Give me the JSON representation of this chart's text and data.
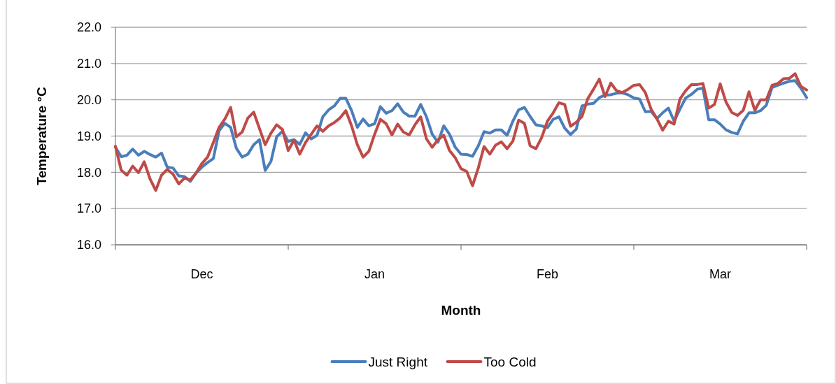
{
  "chart_data": {
    "type": "line",
    "xlabel": "Month",
    "ylabel": "Temperature °C",
    "categories": [
      null,
      null,
      null,
      null,
      null,
      null,
      null,
      null,
      null,
      null,
      null,
      null,
      null,
      null,
      null,
      "Dec",
      null,
      null,
      null,
      null,
      null,
      null,
      null,
      null,
      null,
      null,
      null,
      null,
      null,
      null,
      null,
      null,
      null,
      null,
      null,
      null,
      null,
      null,
      null,
      null,
      null,
      null,
      null,
      null,
      null,
      "Jan",
      null,
      null,
      null,
      null,
      null,
      null,
      null,
      null,
      null,
      null,
      null,
      null,
      null,
      null,
      null,
      null,
      null,
      null,
      null,
      null,
      null,
      null,
      null,
      null,
      null,
      null,
      null,
      null,
      null,
      "Feb",
      null,
      null,
      null,
      null,
      null,
      null,
      null,
      null,
      null,
      null,
      null,
      null,
      null,
      null,
      null,
      null,
      null,
      null,
      null,
      null,
      null,
      null,
      null,
      null,
      null,
      null,
      null,
      null,
      null,
      "Mar",
      null,
      null,
      null,
      null,
      null,
      null,
      null,
      null,
      null,
      null,
      null,
      null,
      null,
      null,
      null
    ],
    "ylim": [
      16,
      22
    ],
    "yticks": [
      {
        "value": 16,
        "label": "16.0"
      },
      {
        "value": 17,
        "label": "17.0"
      },
      {
        "value": 18,
        "label": "18.0"
      },
      {
        "value": 19,
        "label": "19.0"
      },
      {
        "value": 20,
        "label": "20.0"
      },
      {
        "value": 21,
        "label": "21.0"
      },
      {
        "value": 22,
        "label": "22.0"
      }
    ],
    "grid": "y",
    "legend": "bottom",
    "marker": "none",
    "line_style": "solid",
    "series": [
      {
        "name": "Just Right",
        "color": "#4a7ebb",
        "values": [
          18.69,
          18.43,
          18.47,
          18.64,
          18.47,
          18.58,
          18.49,
          18.42,
          18.53,
          18.14,
          18.12,
          17.9,
          17.88,
          17.75,
          17.98,
          18.14,
          18.27,
          18.38,
          19.15,
          19.35,
          19.24,
          18.66,
          18.42,
          18.5,
          18.76,
          18.9,
          18.05,
          18.3,
          18.98,
          19.13,
          18.85,
          18.9,
          18.77,
          19.09,
          18.92,
          19.02,
          19.53,
          19.72,
          19.83,
          20.04,
          20.04,
          19.7,
          19.24,
          19.47,
          19.28,
          19.34,
          19.81,
          19.63,
          19.7,
          19.89,
          19.66,
          19.55,
          19.55,
          19.87,
          19.53,
          19.05,
          18.83,
          19.28,
          19.05,
          18.69,
          18.5,
          18.49,
          18.44,
          18.73,
          19.12,
          19.08,
          19.17,
          19.17,
          19.02,
          19.41,
          19.72,
          19.79,
          19.54,
          19.31,
          19.28,
          19.23,
          19.46,
          19.53,
          19.22,
          19.04,
          19.19,
          19.83,
          19.88,
          19.9,
          20.06,
          20.13,
          20.14,
          20.18,
          20.19,
          20.14,
          20.05,
          20.02,
          19.67,
          19.68,
          19.48,
          19.64,
          19.77,
          19.41,
          19.74,
          20.05,
          20.15,
          20.29,
          20.32,
          19.45,
          19.45,
          19.33,
          19.17,
          19.1,
          19.06,
          19.41,
          19.64,
          19.64,
          19.7,
          19.85,
          20.34,
          20.4,
          20.46,
          20.51,
          20.53,
          20.32,
          20.06
        ]
      },
      {
        "name": "Too Cold",
        "color": "#be4b48",
        "values": [
          18.72,
          18.06,
          17.92,
          18.17,
          17.99,
          18.29,
          17.82,
          17.5,
          17.92,
          18.08,
          17.95,
          17.68,
          17.84,
          17.79,
          17.98,
          18.24,
          18.42,
          18.82,
          19.24,
          19.47,
          19.79,
          18.98,
          19.11,
          19.5,
          19.66,
          19.21,
          18.76,
          19.08,
          19.31,
          19.18,
          18.6,
          18.89,
          18.5,
          18.82,
          19.05,
          19.28,
          19.13,
          19.28,
          19.37,
          19.5,
          19.7,
          19.28,
          18.76,
          18.42,
          18.58,
          19.05,
          19.46,
          19.34,
          19.03,
          19.33,
          19.11,
          19.03,
          19.31,
          19.53,
          18.92,
          18.69,
          18.9,
          19.02,
          18.6,
          18.4,
          18.1,
          18.02,
          17.63,
          18.12,
          18.71,
          18.5,
          18.75,
          18.84,
          18.65,
          18.86,
          19.44,
          19.35,
          18.73,
          18.65,
          18.96,
          19.41,
          19.64,
          19.92,
          19.87,
          19.27,
          19.38,
          19.54,
          20.03,
          20.29,
          20.57,
          20.09,
          20.46,
          20.25,
          20.2,
          20.29,
          20.4,
          20.42,
          20.2,
          19.74,
          19.48,
          19.16,
          19.41,
          19.33,
          20.02,
          20.25,
          20.42,
          20.42,
          20.45,
          19.77,
          19.87,
          20.44,
          19.94,
          19.65,
          19.57,
          19.71,
          20.22,
          19.71,
          20.0,
          20.0,
          20.4,
          20.45,
          20.58,
          20.59,
          20.72,
          20.37,
          20.27
        ]
      }
    ]
  }
}
